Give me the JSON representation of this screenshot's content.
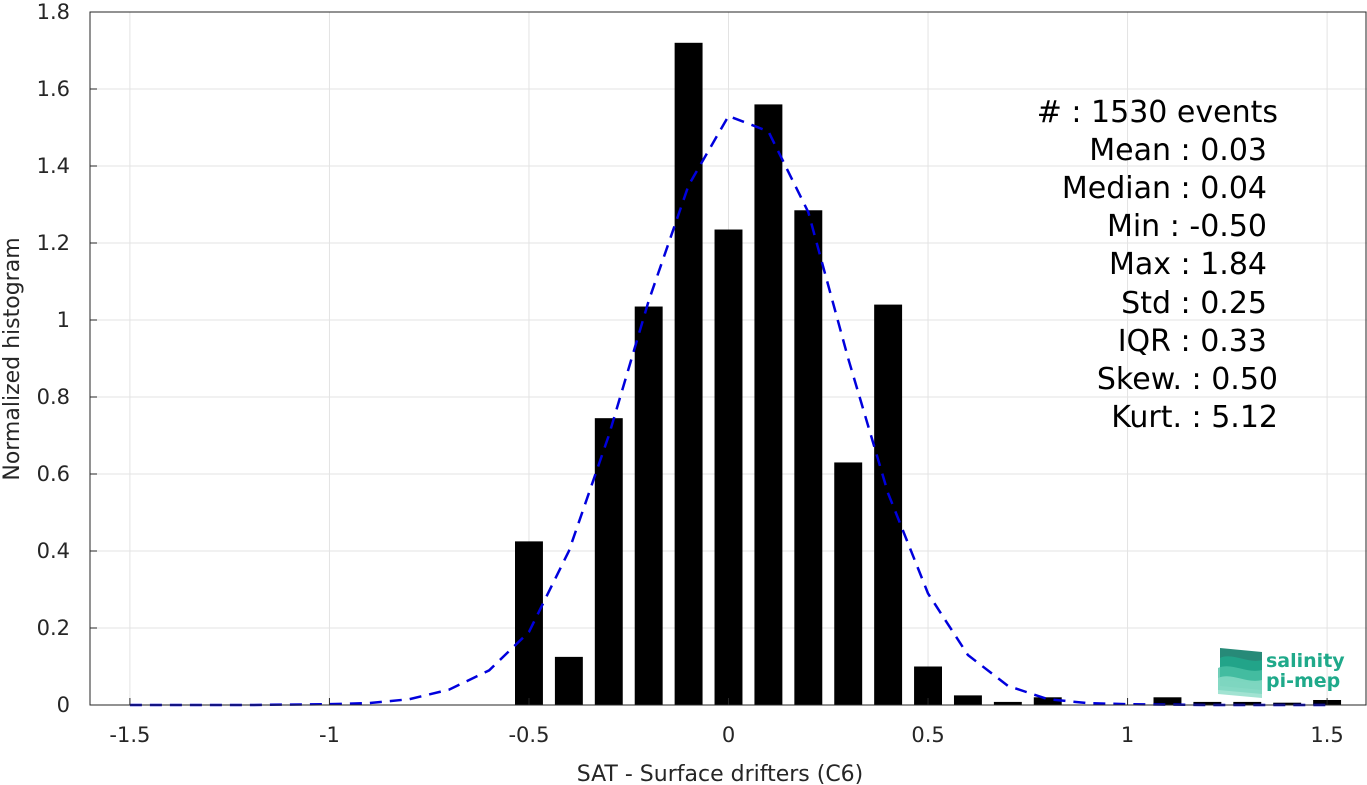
{
  "chart_data": {
    "type": "bar",
    "xlabel": "SAT - Surface drifters (C6)",
    "ylabel": "Normalized histogram",
    "xlim": [
      -1.6,
      1.6
    ],
    "ylim": [
      0,
      1.8
    ],
    "xticks": [
      -1.5,
      -1,
      -0.5,
      0,
      0.5,
      1,
      1.5
    ],
    "xtick_labels": [
      "-1.5",
      "-1",
      "-0.5",
      "0",
      "0.5",
      "1",
      "1.5"
    ],
    "yticks": [
      0,
      0.2,
      0.4,
      0.6,
      0.8,
      1,
      1.2,
      1.4,
      1.6,
      1.8
    ],
    "ytick_labels": [
      "0",
      "0.2",
      "0.4",
      "0.6",
      "0.8",
      "1",
      "1.2",
      "1.4",
      "1.6",
      "1.8"
    ],
    "grid": true,
    "bar_width": 0.07,
    "bars": {
      "color": "#000000",
      "x": [
        -0.5,
        -0.4,
        -0.3,
        -0.2,
        -0.1,
        0.0,
        0.1,
        0.2,
        0.3,
        0.4,
        0.5,
        0.6,
        0.7,
        0.8,
        1.1,
        1.2,
        1.3,
        1.4,
        1.5
      ],
      "values": [
        0.425,
        0.125,
        0.745,
        1.035,
        1.72,
        1.235,
        1.56,
        1.285,
        0.63,
        1.04,
        0.1,
        0.025,
        0.008,
        0.02,
        0.02,
        0.008,
        0.008,
        0.006,
        0.013
      ]
    },
    "fit_curve": {
      "style": "dashed",
      "color": "#0000dd",
      "x": [
        -1.5,
        -1.4,
        -1.3,
        -1.2,
        -1.1,
        -1.0,
        -0.9,
        -0.8,
        -0.7,
        -0.6,
        -0.5,
        -0.4,
        -0.3,
        -0.2,
        -0.1,
        0.0,
        0.1,
        0.2,
        0.3,
        0.4,
        0.5,
        0.6,
        0.7,
        0.8,
        0.9,
        1.0,
        1.1,
        1.2,
        1.3,
        1.4,
        1.5
      ],
      "y": [
        0,
        0,
        0,
        0,
        0.001,
        0.002,
        0.005,
        0.015,
        0.04,
        0.09,
        0.19,
        0.4,
        0.7,
        1.05,
        1.35,
        1.53,
        1.49,
        1.28,
        0.9,
        0.55,
        0.29,
        0.13,
        0.05,
        0.015,
        0.005,
        0.002,
        0.001,
        0,
        0,
        0,
        0
      ]
    }
  },
  "stats": {
    "events": "#  : 1530 events",
    "mean": "Mean : 0.03",
    "median": "Median : 0.04",
    "min": "Min : -0.50",
    "max": "Max : 1.84",
    "std": "Std : 0.25",
    "iqr": "IQR : 0.33",
    "skew": "Skew. : 0.50",
    "kurt": "Kurt. : 5.12"
  },
  "logo": {
    "line1": "salinity",
    "line2": "pi-mep",
    "color": "#1fa98a"
  }
}
